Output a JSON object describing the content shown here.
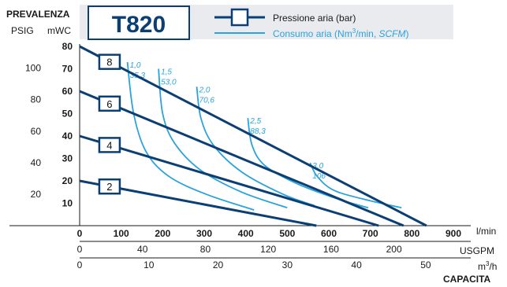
{
  "colors": {
    "pressure_line": "#0b3f74",
    "air_line": "#2aa3dc",
    "axis": "#1a1a1a",
    "header_bg": "#e9ebef",
    "title_text": "#0b3f74",
    "air_label_text": "#2aa3dc"
  },
  "header": {
    "y_title": "PREVALENZA",
    "y_unit_psig": "PSIG",
    "y_unit_mwc": "mWC",
    "model": "T820",
    "legend_pressure": "Pressione aria (bar)",
    "legend_air_prefix": "Consumo aria  (Nm",
    "legend_air_sup": "3",
    "legend_air_mid": "/min, ",
    "legend_air_italic": "SCFM",
    "legend_air_suffix": ")"
  },
  "chart_data": {
    "type": "line",
    "x_axes": [
      {
        "unit": "l/min",
        "ticks": [
          "0",
          "100",
          "200",
          "300",
          "400",
          "500",
          "600",
          "700",
          "800",
          "900"
        ],
        "range": [
          0,
          900
        ]
      },
      {
        "unit": "USGPM",
        "ticks": [
          "0",
          "40",
          "80",
          "120",
          "160",
          "200"
        ],
        "range": [
          0,
          237.8
        ]
      },
      {
        "unit_prefix": "m",
        "unit_sup": "3",
        "unit_suffix": "/h",
        "ticks": [
          "0",
          "10",
          "20",
          "30",
          "40",
          "50"
        ],
        "range": [
          0,
          54
        ]
      }
    ],
    "x_title": "CAPACITA",
    "y_axes": [
      {
        "unit": "mWC",
        "ticks": [
          "10",
          "20",
          "30",
          "40",
          "50",
          "60",
          "70",
          "80"
        ],
        "range": [
          0,
          80
        ]
      },
      {
        "unit": "PSIG",
        "ticks": [
          "20",
          "40",
          "60",
          "80",
          "100"
        ],
        "range": [
          0,
          113.8
        ]
      }
    ],
    "pressure_series": [
      {
        "name": "8",
        "points": [
          [
            0,
            80
          ],
          [
            835,
            0
          ]
        ]
      },
      {
        "name": "6",
        "points": [
          [
            0,
            60
          ],
          [
            780,
            0
          ]
        ]
      },
      {
        "name": "4",
        "points": [
          [
            0,
            40
          ],
          [
            720,
            0
          ]
        ]
      },
      {
        "name": "2",
        "points": [
          [
            0,
            20
          ],
          [
            570,
            0
          ]
        ]
      }
    ],
    "air_consumption_series": [
      {
        "name": "1,0",
        "label_line1": "1,0",
        "label_line2": "35,3",
        "points": [
          [
            115,
            73
          ],
          [
            130,
            50
          ],
          [
            160,
            33
          ],
          [
            215,
            22
          ],
          [
            305,
            14
          ],
          [
            420,
            7
          ]
        ]
      },
      {
        "name": "1,5",
        "label_line1": "1,5",
        "label_line2": "53,0",
        "points": [
          [
            190,
            70
          ],
          [
            200,
            50
          ],
          [
            228,
            37
          ],
          [
            290,
            25
          ],
          [
            390,
            15
          ],
          [
            500,
            8
          ]
        ]
      },
      {
        "name": "2,0",
        "label_line1": "2,0",
        "label_line2": "70,6",
        "points": [
          [
            282,
            62
          ],
          [
            292,
            48
          ],
          [
            322,
            36
          ],
          [
            390,
            24
          ],
          [
            490,
            14
          ],
          [
            565,
            9
          ]
        ]
      },
      {
        "name": "2,5",
        "label_line1": "2,5",
        "label_line2": "88,3",
        "points": [
          [
            405,
            48
          ],
          [
            415,
            36
          ],
          [
            445,
            27
          ],
          [
            520,
            19
          ],
          [
            620,
            12
          ],
          [
            695,
            8
          ]
        ]
      },
      {
        "name": "3,0",
        "label_line1": "3,0",
        "label_line2": "106",
        "points": [
          [
            555,
            28
          ],
          [
            572,
            22
          ],
          [
            610,
            16
          ],
          [
            680,
            12
          ],
          [
            775,
            8
          ]
        ]
      }
    ]
  }
}
